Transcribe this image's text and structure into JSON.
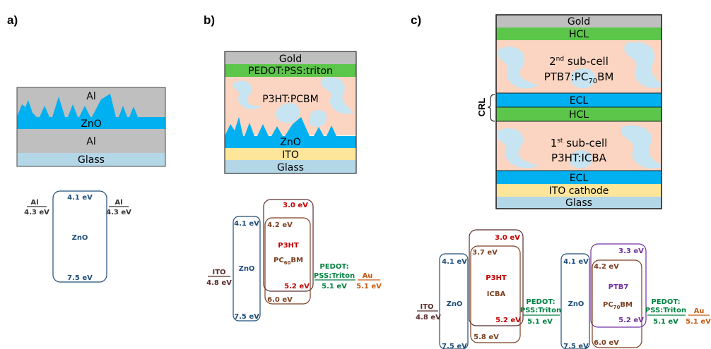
{
  "panels": {
    "a": {
      "label": "a)",
      "layers": [
        "Al",
        "ZnO",
        "Al",
        "Glass"
      ],
      "band": {
        "left_metal": "Al",
        "left_wf": "4.3 eV",
        "right_metal": "Al",
        "right_wf": "4.3 eV",
        "material": "ZnO",
        "top": "4.1 eV",
        "bottom": "7.5 eV"
      }
    },
    "b": {
      "label": "b)",
      "layers": [
        "Gold",
        "PEDOT:PSS:triton",
        "P3HT:PCBM",
        "ZnO",
        "ITO",
        "Glass"
      ],
      "band": {
        "ito": "ITO",
        "ito_wf": "4.8 eV",
        "zno": "ZnO",
        "zno_top": "4.1 eV",
        "zno_bottom": "7.5 eV",
        "donor": "P3HT",
        "donor_top": "3.0 eV",
        "donor_bottom": "5.2 eV",
        "acceptor_base": "PC",
        "acceptor_sub": "60",
        "acceptor_suffix": "BM",
        "acceptor_top": "4.2 eV",
        "acceptor_bottom": "6.0 eV",
        "pedot_line1": "PEDOT:",
        "pedot_line2": "PSS:Triton",
        "pedot_wf": "5.1 eV",
        "au": "Au",
        "au_wf": "5.1 eV"
      }
    },
    "c": {
      "label": "c)",
      "layers": {
        "gold": "Gold",
        "hcl_top": "HCL",
        "sub2_sup": "nd",
        "sub2_pre": "2",
        "sub2_post": " sub-cell",
        "sub2_mat_pre": "PTB7:PC",
        "sub2_mat_sub": "70",
        "sub2_mat_post": "BM",
        "ecl_mid": "ECL",
        "hcl_mid": "HCL",
        "sub1_pre": "1",
        "sub1_sup": "st",
        "sub1_post": " sub-cell",
        "sub1_mat": "P3HT:ICBA",
        "ecl_bottom": "ECL",
        "ito": "ITO cathode",
        "glass": "Glass"
      },
      "crl": "CRL",
      "band": {
        "ito": "ITO",
        "ito_wf": "4.8 eV",
        "zno1": "ZnO",
        "zno1_top": "4.1 eV",
        "zno1_bottom": "7.5 eV",
        "p3ht": "P3HT",
        "p3ht_top": "3.0 eV",
        "p3ht_bottom": "5.2 eV",
        "icba": "ICBA",
        "icba_top": "3.7 eV",
        "icba_bottom": "5.8 eV",
        "pedot1_line1": "PEDOT:",
        "pedot1_line2": "PSS:Triton",
        "pedot1_wf": "5.1 eV",
        "zno2": "ZnO",
        "zno2_top": "4.1 eV",
        "zno2_bottom": "7.5 eV",
        "ptb7": "PTB7",
        "ptb7_top": "3.3 eV",
        "ptb7_bottom": "5.2 eV",
        "pc70_base": "PC",
        "pc70_sub": "70",
        "pc70_suffix": "BM",
        "pc70_top": "4.2 eV",
        "pc70_bottom": "6.0 eV",
        "pedot2_line1": "PEDOT:",
        "pedot2_line2": "PSS:Triton",
        "pedot2_wf": "5.1 eV",
        "au": "Au",
        "au_wf": "5.1 eV"
      }
    }
  },
  "colors": {
    "gold": "#bfbfbf",
    "al": "#bfbfbf",
    "zno": "#00b0f0",
    "glass": "#b4d7e8",
    "pedot": "#5cc64a",
    "active": "#fbd5c1",
    "ito": "#fde59a",
    "swirl": "#c6e4f2",
    "band_blue": "#1f4e79",
    "band_dark": "#5b2c2c",
    "p3ht": "#c00000",
    "pcbm": "#7b3f1f",
    "pedot_text": "#008040",
    "au_text": "#c55a11",
    "ptb7": "#7030a0"
  }
}
